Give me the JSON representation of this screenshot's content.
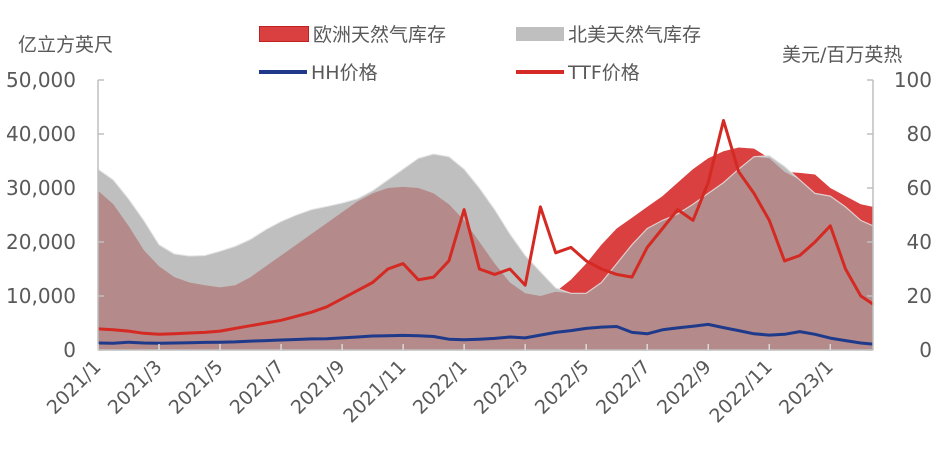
{
  "chart_data": {
    "type": "area+line",
    "title": "",
    "left_axis": {
      "label": "亿立方英尺",
      "ticks": [
        "0",
        "10,000",
        "20,000",
        "30,000",
        "40,000",
        "50,000"
      ],
      "range": [
        0,
        50000
      ]
    },
    "right_axis": {
      "label": "美元/百万英热",
      "ticks": [
        "0",
        "20",
        "40",
        "60",
        "80",
        "100"
      ],
      "range": [
        0,
        100
      ]
    },
    "x_axis": {
      "tick_labels": [
        "2021/1",
        "2021/3",
        "2021/5",
        "2021/7",
        "2021/9",
        "2021/11",
        "2022/1",
        "2022/3",
        "2022/5",
        "2022/7",
        "2022/9",
        "2022/11",
        "2023/1"
      ],
      "tick_months": [
        0,
        2,
        4,
        6,
        8,
        10,
        12,
        14,
        16,
        18,
        20,
        22,
        24
      ],
      "range_months": [
        0,
        25.4
      ],
      "note": "x is month index, 0 = 2021/1"
    },
    "legend": [
      {
        "label": "欧洲天然气库存",
        "kind": "area",
        "color": "#d9403f"
      },
      {
        "label": "北美天然气库存",
        "kind": "area",
        "color": "#bfbfbf"
      },
      {
        "label": "HH价格",
        "kind": "line",
        "color": "#1f3a8a"
      },
      {
        "label": "TTF价格",
        "kind": "line",
        "color": "#d42a23"
      }
    ],
    "overlap_color": "#b48a8a",
    "x": [
      0,
      0.5,
      1,
      1.5,
      2,
      2.5,
      3,
      3.5,
      4,
      4.5,
      5,
      5.5,
      6,
      6.5,
      7,
      7.5,
      8,
      8.5,
      9,
      9.5,
      10,
      10.5,
      11,
      11.5,
      12,
      12.5,
      13,
      13.5,
      14,
      14.5,
      15,
      15.5,
      16,
      16.5,
      17,
      17.5,
      18,
      18.5,
      19,
      19.5,
      20,
      20.5,
      21,
      21.5,
      22,
      22.5,
      23,
      23.5,
      24,
      24.5,
      25,
      25.4
    ],
    "series": [
      {
        "name": "北美天然气库存",
        "axis": "left",
        "unit": "亿立方英尺",
        "values": [
          33500,
          31500,
          28000,
          24000,
          19500,
          17800,
          17400,
          17500,
          18300,
          19200,
          20500,
          22300,
          23800,
          25000,
          26000,
          26600,
          27200,
          28000,
          29500,
          31500,
          33500,
          35500,
          36300,
          35800,
          33500,
          30000,
          26000,
          21500,
          17500,
          14500,
          11500,
          10500,
          10500,
          12500,
          16000,
          19500,
          22500,
          24000,
          25200,
          27000,
          29000,
          31000,
          33500,
          35800,
          36000,
          34000,
          31500,
          29000,
          28500,
          26500,
          24000,
          23000
        ]
      },
      {
        "name": "欧洲天然气库存",
        "axis": "left",
        "unit": "亿立方英尺",
        "values": [
          29500,
          27000,
          23000,
          18500,
          15500,
          13500,
          12500,
          12000,
          11600,
          12000,
          13500,
          15500,
          17500,
          19500,
          21500,
          23500,
          25500,
          27500,
          29000,
          30000,
          30200,
          30000,
          29000,
          27000,
          24000,
          20000,
          16000,
          12500,
          10500,
          10000,
          10800,
          13000,
          16000,
          19500,
          22500,
          24500,
          26500,
          28500,
          31000,
          33500,
          35500,
          36800,
          37500,
          37300,
          35500,
          33000,
          32800,
          32500,
          30000,
          28500,
          27000,
          26500
        ]
      },
      {
        "name": "HH价格",
        "axis": "right",
        "unit": "美元/百万英热",
        "values": [
          2.6,
          2.5,
          2.9,
          2.6,
          2.5,
          2.6,
          2.7,
          2.8,
          2.9,
          3.0,
          3.3,
          3.5,
          3.7,
          3.9,
          4.1,
          4.2,
          4.5,
          4.8,
          5.2,
          5.3,
          5.4,
          5.3,
          5.0,
          4.0,
          3.8,
          4.0,
          4.3,
          4.8,
          4.5,
          5.5,
          6.5,
          7.2,
          8.0,
          8.5,
          8.7,
          6.5,
          6.0,
          7.5,
          8.2,
          8.8,
          9.5,
          8.3,
          7.2,
          6.0,
          5.5,
          5.8,
          6.8,
          5.8,
          4.4,
          3.5,
          2.6,
          2.2
        ]
      },
      {
        "name": "TTF价格",
        "axis": "right",
        "unit": "美元/百万英热",
        "values": [
          7.8,
          7.5,
          7.0,
          6.2,
          5.8,
          6.0,
          6.3,
          6.5,
          7.0,
          8.0,
          9.0,
          10.0,
          11.0,
          12.5,
          14.0,
          16.0,
          19.0,
          22.0,
          25.0,
          30.0,
          32.0,
          26.0,
          27.0,
          33.0,
          52.0,
          30.0,
          28.0,
          30.0,
          24.0,
          53.0,
          36.0,
          38.0,
          33.0,
          30.0,
          28.0,
          27.0,
          38.0,
          45.0,
          52.0,
          48.0,
          62.0,
          85.0,
          66.0,
          58.0,
          48.0,
          33.0,
          35.0,
          40.0,
          46.0,
          30.0,
          20.0,
          17.0
        ]
      }
    ]
  }
}
